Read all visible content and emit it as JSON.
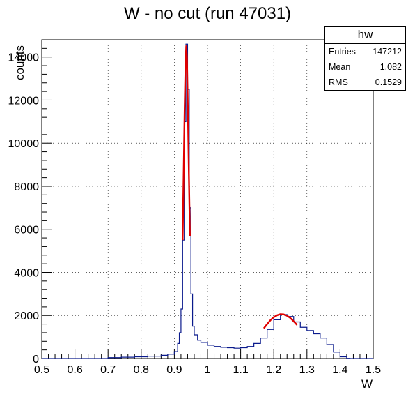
{
  "window": {
    "title": "W - no cut (run 47031)"
  },
  "stats_box": {
    "name": "hw",
    "rows": [
      {
        "label": "Entries",
        "value": "147212"
      },
      {
        "label": "Mean",
        "value": "1.082"
      },
      {
        "label": "RMS",
        "value": "0.1529"
      }
    ]
  },
  "chart_data": {
    "type": "histogram",
    "title": "W - no cut (run 47031)",
    "xlabel": "W",
    "ylabel": "counts",
    "xlim": [
      0.5,
      1.5
    ],
    "ylim": [
      0,
      14800
    ],
    "xticks": [
      "0.5",
      "0.6",
      "0.7",
      "0.8",
      "0.9",
      "1",
      "1.1",
      "1.2",
      "1.3",
      "1.4",
      "1.5"
    ],
    "yticks": [
      "0",
      "2000",
      "4000",
      "6000",
      "8000",
      "10000",
      "12000",
      "14000"
    ],
    "grid": true,
    "series": [
      {
        "kind": "histogram",
        "color": "#0a1a8c",
        "points": [
          [
            0.7,
            40
          ],
          [
            0.74,
            60
          ],
          [
            0.78,
            80
          ],
          [
            0.82,
            110
          ],
          [
            0.86,
            150
          ],
          [
            0.88,
            200
          ],
          [
            0.9,
            320
          ],
          [
            0.91,
            700
          ],
          [
            0.915,
            1200
          ],
          [
            0.92,
            2300
          ],
          [
            0.925,
            5500
          ],
          [
            0.93,
            11000
          ],
          [
            0.935,
            14600
          ],
          [
            0.94,
            12500
          ],
          [
            0.945,
            7000
          ],
          [
            0.95,
            3000
          ],
          [
            0.955,
            1500
          ],
          [
            0.96,
            1100
          ],
          [
            0.97,
            850
          ],
          [
            0.98,
            750
          ],
          [
            1.0,
            620
          ],
          [
            1.02,
            560
          ],
          [
            1.04,
            520
          ],
          [
            1.06,
            500
          ],
          [
            1.08,
            480
          ],
          [
            1.1,
            500
          ],
          [
            1.12,
            560
          ],
          [
            1.14,
            700
          ],
          [
            1.16,
            950
          ],
          [
            1.18,
            1350
          ],
          [
            1.2,
            1800
          ],
          [
            1.22,
            2040
          ],
          [
            1.24,
            1950
          ],
          [
            1.26,
            1700
          ],
          [
            1.28,
            1450
          ],
          [
            1.3,
            1300
          ],
          [
            1.32,
            1150
          ],
          [
            1.34,
            950
          ],
          [
            1.36,
            650
          ],
          [
            1.38,
            300
          ],
          [
            1.4,
            80
          ],
          [
            1.42,
            10
          ]
        ]
      },
      {
        "kind": "fit",
        "color": "#e00000",
        "segments": [
          {
            "name": "",
            "points": [
              [
                0.925,
                5500
              ],
              [
                0.928,
                8500
              ],
              [
                0.931,
                11500
              ],
              [
                0.934,
                13800
              ],
              [
                0.936,
                14500
              ],
              [
                0.938,
                14000
              ],
              [
                0.941,
                11500
              ],
              [
                0.944,
                8500
              ],
              [
                0.947,
                5700
              ]
            ]
          },
          {
            "name": "",
            "points": [
              [
                1.17,
                1400
              ],
              [
                1.18,
                1600
              ],
              [
                1.19,
                1780
              ],
              [
                1.2,
                1920
              ],
              [
                1.21,
                2010
              ],
              [
                1.22,
                2060
              ],
              [
                1.23,
                2050
              ],
              [
                1.24,
                1990
              ],
              [
                1.25,
                1880
              ],
              [
                1.26,
                1730
              ],
              [
                1.27,
                1560
              ]
            ]
          }
        ]
      }
    ]
  }
}
